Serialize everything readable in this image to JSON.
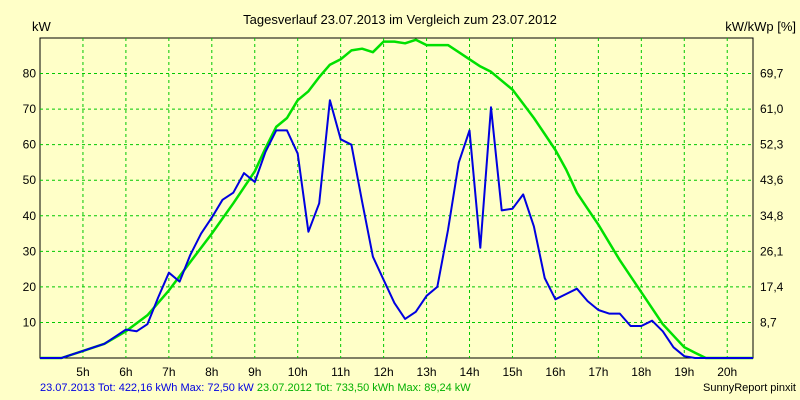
{
  "chart_data": {
    "type": "line",
    "title": "Tagesverlauf 23.07.2013 im Vergleich zum 23.07.2012",
    "ylabel_left": "kW",
    "ylabel_right": "kW/kWp [%]",
    "x_unit": "hour",
    "xlim": [
      4.0,
      20.6
    ],
    "ylim": [
      0,
      90
    ],
    "x_ticks": [
      5,
      6,
      7,
      8,
      9,
      10,
      11,
      12,
      13,
      14,
      15,
      16,
      17,
      18,
      19,
      20
    ],
    "x_tick_labels": [
      "5h",
      "6h",
      "7h",
      "8h",
      "9h",
      "10h",
      "11h",
      "12h",
      "13h",
      "14h",
      "15h",
      "16h",
      "17h",
      "18h",
      "19h",
      "20h"
    ],
    "y_ticks": [
      10,
      20,
      30,
      40,
      50,
      60,
      70,
      80
    ],
    "y_tick_labels": [
      "10",
      "20",
      "30",
      "40",
      "50",
      "60",
      "70",
      "80"
    ],
    "y2_ticks": [
      8.7,
      17.4,
      26.1,
      34.8,
      43.6,
      52.3,
      61.0,
      69.7
    ],
    "y2_tick_labels": [
      "8,7",
      "17,4",
      "26,1",
      "34,8",
      "43,6",
      "52,3",
      "61,0",
      "69,7"
    ],
    "grid": true,
    "series": [
      {
        "name": "23.07.2013",
        "color": "#0000e0",
        "x": [
          4.0,
          4.5,
          4.75,
          5.0,
          5.25,
          5.5,
          5.75,
          6.0,
          6.25,
          6.5,
          6.75,
          7.0,
          7.25,
          7.5,
          7.75,
          8.0,
          8.25,
          8.5,
          8.75,
          9.0,
          9.25,
          9.5,
          9.75,
          10.0,
          10.25,
          10.5,
          10.75,
          11.0,
          11.25,
          11.5,
          11.75,
          12.0,
          12.25,
          12.5,
          12.75,
          13.0,
          13.25,
          13.5,
          13.75,
          14.0,
          14.25,
          14.5,
          14.75,
          15.0,
          15.25,
          15.5,
          15.75,
          16.0,
          16.25,
          16.5,
          16.75,
          17.0,
          17.25,
          17.5,
          17.75,
          18.0,
          18.25,
          18.5,
          18.75,
          19.0,
          19.25,
          19.5,
          19.75,
          20.0,
          20.6
        ],
        "y": [
          0,
          0,
          1,
          2,
          3,
          4,
          6,
          8,
          7.5,
          9.5,
          17,
          24,
          21.5,
          29,
          35,
          39.5,
          44.5,
          46.5,
          52,
          49.5,
          58,
          64,
          64,
          57.5,
          35.5,
          43.5,
          72.5,
          61.5,
          60,
          44,
          28.5,
          22,
          15.5,
          11,
          13,
          17.5,
          20,
          36,
          55,
          64,
          31,
          70.5,
          41.5,
          42,
          46,
          37,
          22.5,
          16.5,
          18,
          19.5,
          16,
          13.5,
          12.5,
          12.5,
          9,
          9,
          10.5,
          7.5,
          3,
          0.5,
          0,
          0,
          0,
          0,
          0
        ]
      },
      {
        "name": "23.07.2012",
        "color": "#00e000",
        "x": [
          4.0,
          4.5,
          5.0,
          5.5,
          6.0,
          6.5,
          7.0,
          7.5,
          8.0,
          8.5,
          9.0,
          9.25,
          9.5,
          9.75,
          10.0,
          10.25,
          10.5,
          10.75,
          11.0,
          11.25,
          11.5,
          11.75,
          12.0,
          12.25,
          12.5,
          12.75,
          13.0,
          13.25,
          13.5,
          13.75,
          14.0,
          14.25,
          14.5,
          14.75,
          15.0,
          15.25,
          15.5,
          15.75,
          16.0,
          16.25,
          16.5,
          16.75,
          17.0,
          17.5,
          18.0,
          18.5,
          19.0,
          19.25,
          19.5,
          19.75,
          20.0,
          20.6
        ],
        "y": [
          0,
          0,
          2,
          4,
          7.5,
          12,
          19,
          27,
          35,
          43.5,
          52.5,
          59,
          65,
          67.5,
          72.5,
          75,
          79,
          82.5,
          84,
          86.5,
          87,
          86,
          89,
          89,
          88.5,
          89.5,
          88,
          88,
          88,
          86,
          84,
          82,
          80.5,
          78,
          75.5,
          71.5,
          67.5,
          63,
          58.5,
          53,
          46.5,
          42,
          37.5,
          27.5,
          18.5,
          9.5,
          3,
          1.5,
          0,
          0,
          0,
          0
        ]
      }
    ]
  },
  "footer": {
    "left_2013": "23.07.2013 Tot: 422,16 kWh Max: 72,50 kW",
    "left_2012": "23.07.2012 Tot: 733,50 kWh Max: 89,24 kW",
    "right": "SunnyReport pinxit"
  }
}
